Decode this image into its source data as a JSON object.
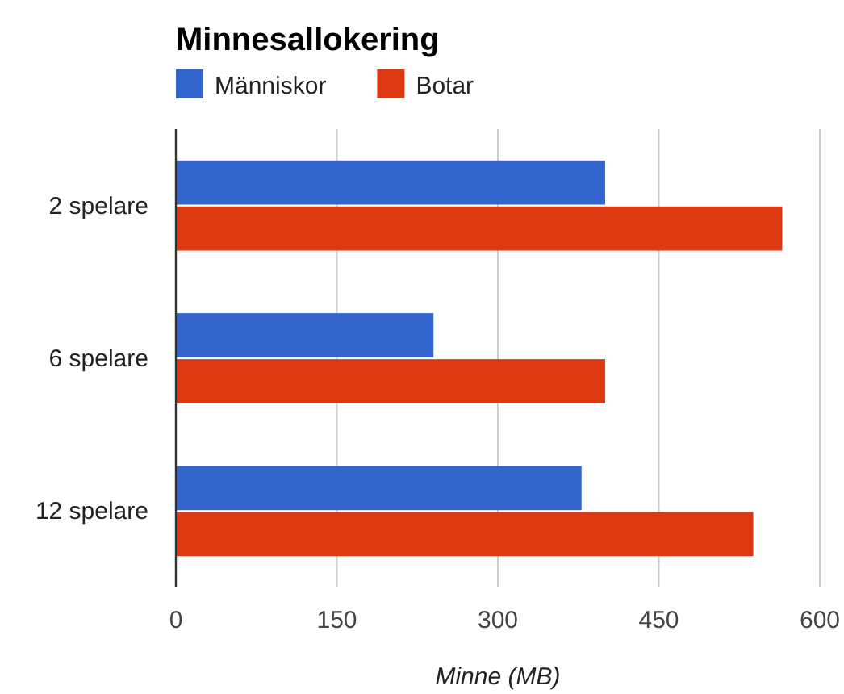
{
  "chart_data": {
    "type": "bar",
    "orientation": "horizontal",
    "title": "Minnesallokering",
    "xlabel": "Minne (MB)",
    "categories": [
      "2 spelare",
      "6 spelare",
      "12 spelare"
    ],
    "series": [
      {
        "name": "Människor",
        "color": "#3366cc",
        "values": [
          400,
          240,
          378
        ]
      },
      {
        "name": "Botar",
        "color": "#dc3912",
        "values": [
          565,
          400,
          538
        ]
      }
    ],
    "xlim": [
      0,
      600
    ],
    "xticks": [
      0,
      150,
      300,
      450,
      600
    ],
    "grid": "x",
    "legend": "top"
  }
}
